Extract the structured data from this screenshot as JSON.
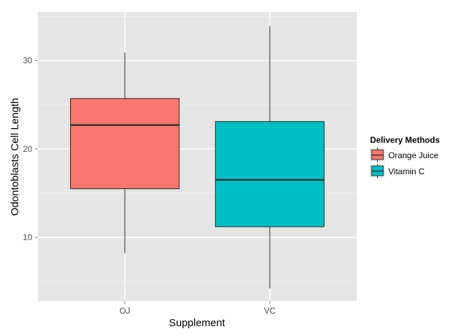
{
  "chart_data": {
    "type": "boxplot",
    "title": "",
    "xlabel": "Supplement",
    "ylabel": "Odontoblasts Cell Length",
    "categories": [
      "OJ",
      "VC"
    ],
    "ylim": [
      2.8,
      35.5
    ],
    "y_ticks": [
      10,
      20,
      30
    ],
    "grid": true,
    "legend_position": "right",
    "legend_title": "Delivery Methods",
    "series": [
      {
        "name": "Orange Juice",
        "category": "OJ",
        "min": 8.2,
        "q1": 15.5,
        "median": 22.7,
        "q3": 25.7,
        "max": 30.9,
        "color": "#F8766D"
      },
      {
        "name": "Vitamin C",
        "category": "VC",
        "min": 4.2,
        "q1": 11.2,
        "median": 16.5,
        "q3": 23.1,
        "max": 33.9,
        "color": "#00BFC4"
      }
    ],
    "colors": {
      "panel": "#E5E5E5",
      "grid_major": "#FFFFFF",
      "grid_minor": "#F2F2F2",
      "box_line": "#333333"
    }
  }
}
